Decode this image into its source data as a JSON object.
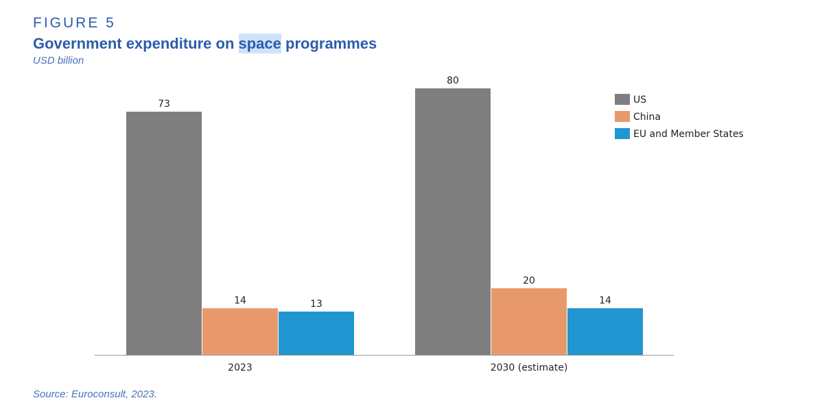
{
  "header": {
    "figure_label": "FIGURE 5",
    "title_before": "Government expenditure on ",
    "title_highlight": "space",
    "title_after": " programmes",
    "unit": "USD billion"
  },
  "source": "Source: Euroconsult, 2023.",
  "chart_data": {
    "type": "bar",
    "title": "Government expenditure on space programmes",
    "ylabel": "USD billion",
    "categories": [
      "2023",
      "2030 (estimate)"
    ],
    "series": [
      {
        "name": "US",
        "color": "#7f7f7f",
        "values": [
          73,
          80
        ]
      },
      {
        "name": "China",
        "color": "#e8996b",
        "values": [
          14,
          20
        ]
      },
      {
        "name": "EU and Member States",
        "color": "#2196d0",
        "values": [
          13,
          14
        ]
      }
    ],
    "ylim": [
      0,
      80
    ],
    "grid": false,
    "legend_position": "top-right",
    "data_labels": true
  }
}
